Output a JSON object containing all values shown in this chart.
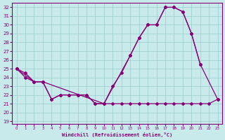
{
  "bg_color": "#c8eaea",
  "line_color": "#880077",
  "grid_color": "#99cccc",
  "xlabel": "Windchill (Refroidissement éolien,°C)",
  "xlim": [
    -0.5,
    23.5
  ],
  "ylim": [
    18.7,
    32.5
  ],
  "yticks": [
    19,
    20,
    21,
    22,
    23,
    24,
    25,
    26,
    27,
    28,
    29,
    30,
    31,
    32
  ],
  "xticks": [
    0,
    1,
    2,
    3,
    4,
    5,
    6,
    7,
    8,
    9,
    10,
    11,
    12,
    13,
    14,
    15,
    16,
    17,
    18,
    19,
    20,
    21,
    22,
    23
  ],
  "line1_x": [
    0,
    1,
    2,
    3,
    4,
    5,
    6,
    7,
    8,
    9,
    10,
    11,
    12,
    13,
    14,
    15,
    16,
    17,
    18,
    19,
    20,
    21
  ],
  "line1_y": [
    25.0,
    24.0,
    23.5,
    23.5,
    21.5,
    22.0,
    22.0,
    22.0,
    22.0,
    21.0,
    21.0,
    23.0,
    24.5,
    26.5,
    28.5,
    30.0,
    30.0,
    32.0,
    32.0,
    31.5,
    29.0,
    25.5
  ],
  "line2_x": [
    0,
    1,
    2,
    3,
    4,
    5,
    6,
    7,
    8,
    9,
    10,
    11,
    12,
    13,
    14,
    15,
    16,
    17,
    18,
    19,
    20,
    21,
    22,
    23
  ],
  "line2_y": [
    25.0,
    24.5,
    23.5,
    23.5,
    21.5,
    22.0,
    22.0,
    22.0,
    22.0,
    21.0,
    21.0,
    21.0,
    21.0,
    21.0,
    21.0,
    21.0,
    21.0,
    21.0,
    21.0,
    21.0,
    21.0,
    21.0,
    21.0,
    21.5
  ],
  "line3_x": [
    0,
    2,
    3,
    10,
    13,
    14,
    15,
    16,
    17,
    18,
    19,
    20,
    21,
    23
  ],
  "line3_y": [
    25.0,
    23.5,
    23.5,
    21.0,
    26.5,
    28.5,
    30.0,
    30.0,
    32.0,
    32.0,
    31.5,
    29.0,
    25.5,
    21.5
  ]
}
